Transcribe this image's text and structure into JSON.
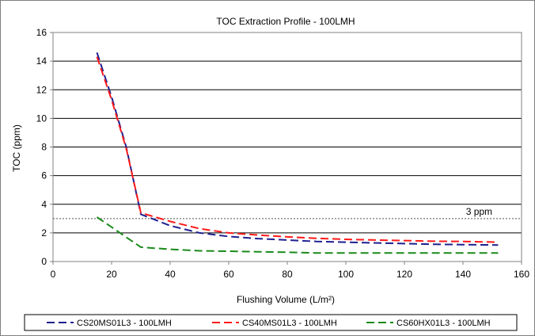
{
  "chart_data": {
    "type": "line",
    "title": "TOC Extraction Profile - 100LMH",
    "xlabel": "Flushing Volume (L/m²)",
    "ylabel": "TOC  (ppm)",
    "xlim": [
      0,
      160
    ],
    "ylim": [
      0,
      16
    ],
    "x_ticks": [
      0,
      20,
      40,
      60,
      80,
      100,
      120,
      140,
      160
    ],
    "y_ticks": [
      0,
      2,
      4,
      6,
      8,
      10,
      12,
      14,
      16
    ],
    "grid": "horizontal major",
    "legend_position": "bottom",
    "reference_line": {
      "y": 3,
      "label": "3 ppm",
      "color": "#555555"
    },
    "series": [
      {
        "name": "CS20MS01L3 - 100LMH",
        "color": "#1f1f8f",
        "x": [
          15,
          20,
          25,
          30,
          40,
          50,
          60,
          70,
          80,
          90,
          100,
          110,
          120,
          130,
          140,
          152
        ],
        "y": [
          14.6,
          11.5,
          8.0,
          3.3,
          2.5,
          2.0,
          1.75,
          1.6,
          1.5,
          1.4,
          1.35,
          1.3,
          1.25,
          1.2,
          1.18,
          1.15
        ]
      },
      {
        "name": "CS40MS01L3 - 100LMH",
        "color": "#ff1a1a",
        "x": [
          15,
          20,
          25,
          30,
          40,
          50,
          60,
          70,
          80,
          90,
          100,
          110,
          120,
          130,
          140,
          152
        ],
        "y": [
          14.3,
          11.3,
          7.9,
          3.4,
          2.8,
          2.3,
          2.0,
          1.85,
          1.72,
          1.62,
          1.55,
          1.5,
          1.46,
          1.42,
          1.4,
          1.35
        ]
      },
      {
        "name": "CS60HX01L3 - 100LMH",
        "color": "#1a8a1a",
        "x": [
          15,
          20,
          25,
          30,
          40,
          50,
          60,
          70,
          80,
          90,
          100,
          110,
          120,
          130,
          140,
          152
        ],
        "y": [
          3.1,
          2.4,
          1.7,
          1.0,
          0.85,
          0.75,
          0.72,
          0.68,
          0.65,
          0.6,
          0.6,
          0.6,
          0.6,
          0.6,
          0.6,
          0.6
        ]
      }
    ]
  }
}
